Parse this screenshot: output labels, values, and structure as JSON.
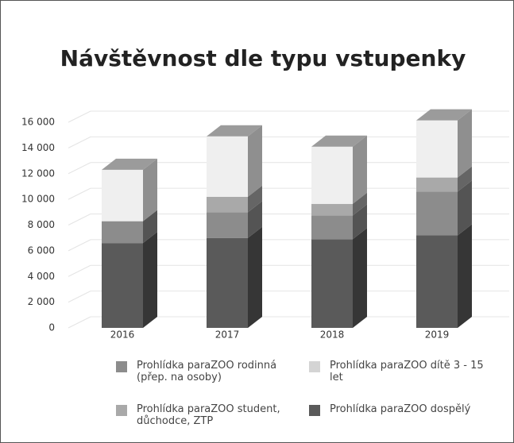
{
  "chart_data": {
    "type": "bar3d_stacked",
    "title": "Návštěvnost dle typu vstupenky",
    "categories": [
      "2016",
      "2017",
      "2018",
      "2019"
    ],
    "series": [
      {
        "name": "Prohlídka paraZOO dospělý",
        "color": "#5a5a5a",
        "values": [
          6600,
          7000,
          6900,
          7200
        ]
      },
      {
        "name": "Prohlídka paraZOO rodinná (přep. na osoby)",
        "color": "#8c8c8c",
        "values": [
          1700,
          2000,
          1850,
          3400
        ]
      },
      {
        "name": "Prohlídka paraZOO student, důchodce, ZTP",
        "color": "#a9a9a9",
        "values": [
          0,
          1200,
          900,
          1100
        ]
      },
      {
        "name": "Prohlídka paraZOO dítě 3 - 15 let",
        "color": "#efefef",
        "values": [
          4000,
          4700,
          4450,
          4450
        ]
      }
    ],
    "ylim": [
      0,
      16000
    ],
    "yticks": [
      0,
      {
        "value": 2000,
        "label": "2 000"
      },
      {
        "value": 4000,
        "label": "4 000"
      },
      {
        "value": 6000,
        "label": "6 000"
      },
      {
        "value": 8000,
        "label": "8 000"
      },
      {
        "value": 10000,
        "label": "10 000"
      },
      {
        "value": 12000,
        "label": "12 000"
      },
      {
        "value": 14000,
        "label": "14 000"
      },
      {
        "value": 16000,
        "label": "16 000"
      }
    ],
    "grid": true
  }
}
